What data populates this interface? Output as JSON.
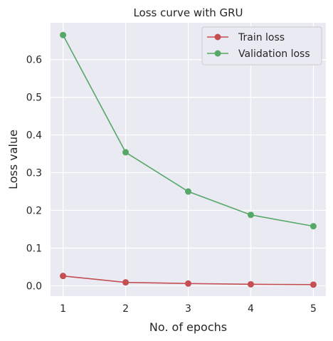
{
  "chart_data": {
    "type": "line",
    "title": "Loss curve with GRU",
    "xlabel": "No. of epochs",
    "ylabel": "Loss value",
    "x": [
      1,
      2,
      3,
      4,
      5
    ],
    "xticks": [
      "1",
      "2",
      "3",
      "4",
      "5"
    ],
    "yticks": [
      "0.0",
      "0.1",
      "0.2",
      "0.3",
      "0.4",
      "0.5",
      "0.6"
    ],
    "xlim": [
      0.8,
      5.2
    ],
    "ylim": [
      -0.0275,
      0.6975
    ],
    "grid": true,
    "legend_position": "top-right",
    "background": "#eaeaf2",
    "series": [
      {
        "name": "Train loss",
        "color": "#c44e52",
        "marker": "circle",
        "values": [
          0.026,
          0.009,
          0.006,
          0.004,
          0.003
        ]
      },
      {
        "name": "Validation loss",
        "color": "#55a868",
        "marker": "circle",
        "values": [
          0.665,
          0.354,
          0.25,
          0.188,
          0.158
        ]
      }
    ]
  }
}
